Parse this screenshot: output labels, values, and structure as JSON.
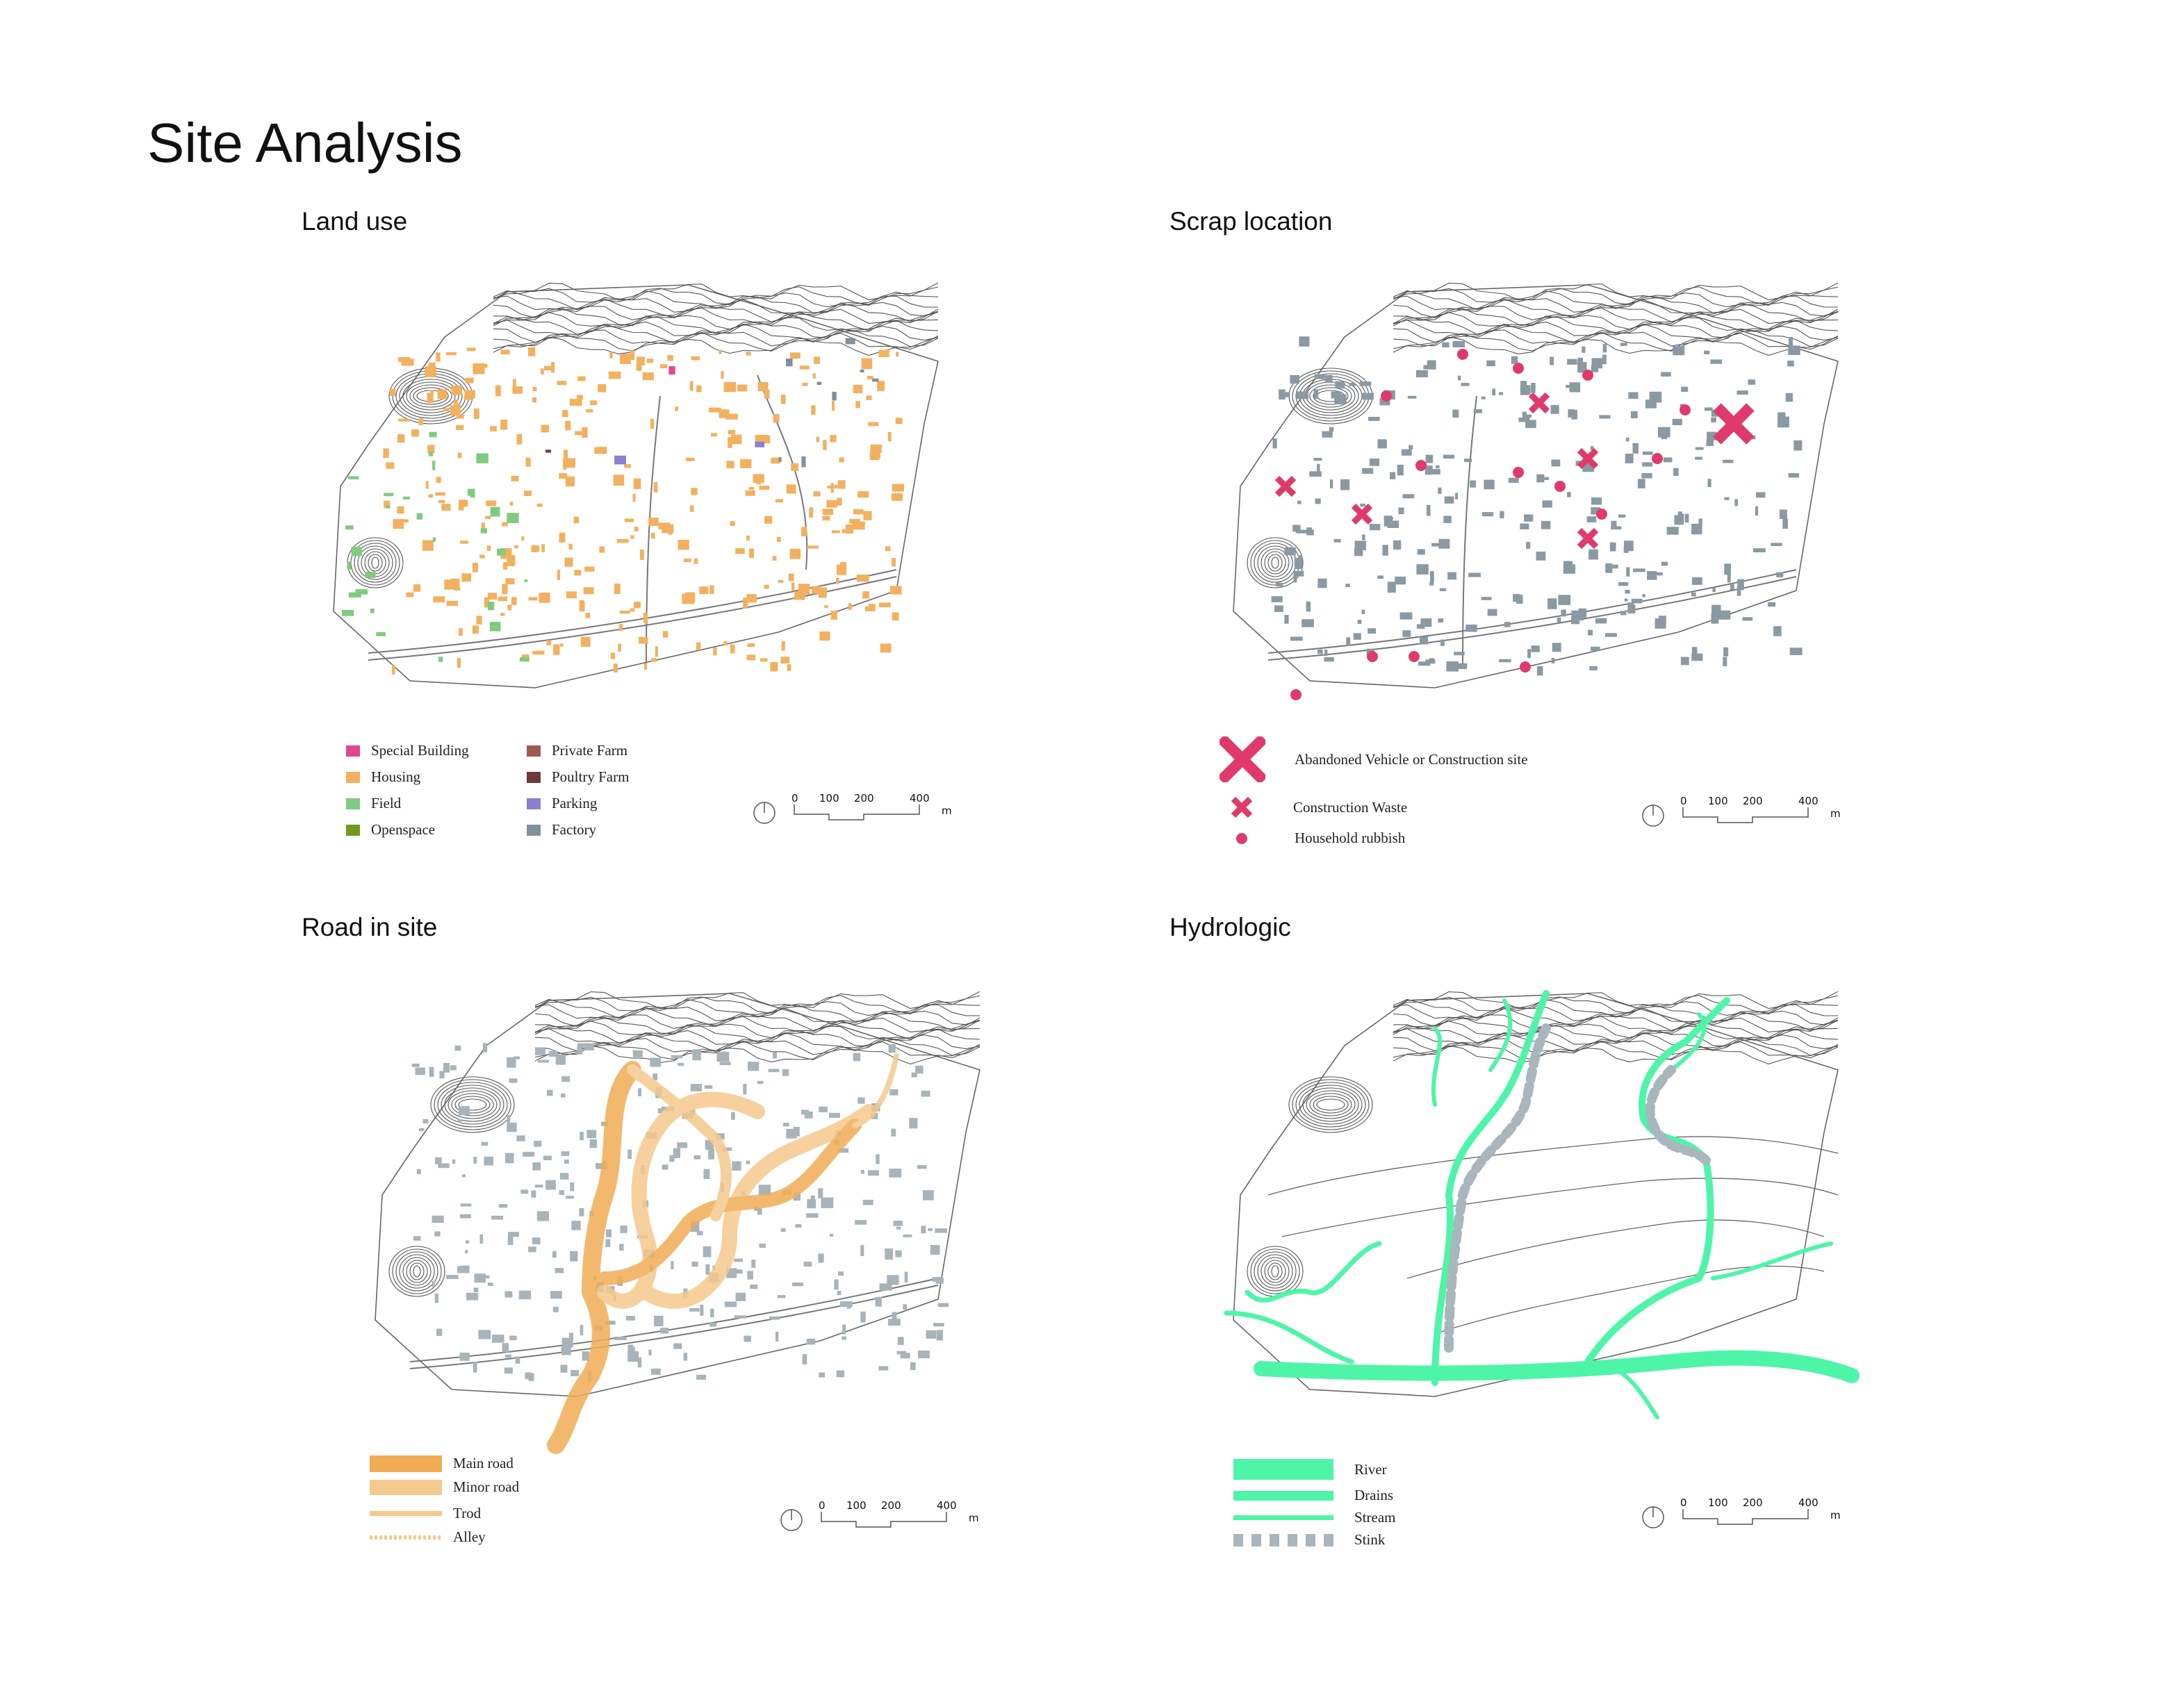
{
  "page_title": "Site Analysis",
  "panels": {
    "landuse": {
      "title": "Land use"
    },
    "scrap": {
      "title": "Scrap location"
    },
    "road": {
      "title": "Road in site"
    },
    "hydro": {
      "title": "Hydrologic"
    }
  },
  "landuse_legend": [
    {
      "label": "Special Building",
      "color": "#e0478e"
    },
    {
      "label": "Housing",
      "color": "#f2b160"
    },
    {
      "label": "Field",
      "color": "#7fcb7f"
    },
    {
      "label": "Openspace",
      "color": "#6f9a1a"
    },
    {
      "label": "Private Farm",
      "color": "#9e5a4e"
    },
    {
      "label": "Poultry Farm",
      "color": "#6b3b3b"
    },
    {
      "label": "Parking",
      "color": "#8a7fd2"
    },
    {
      "label": "Factory",
      "color": "#7f919a"
    }
  ],
  "scrap_legend": [
    {
      "label": "Abandoned Vehicle or Construction site",
      "icon": "large-x-icon",
      "color": "#e03a6c"
    },
    {
      "label": "Construction Waste",
      "icon": "small-x-icon",
      "color": "#e03a6c"
    },
    {
      "label": "Household rubbish",
      "icon": "dot-icon",
      "color": "#e03a6c"
    }
  ],
  "road_legend": [
    {
      "label": "Main road",
      "style": "main-road",
      "color": "#f0b060"
    },
    {
      "label": "Minor road",
      "style": "minor-road",
      "color": "#f5c98e"
    },
    {
      "label": "Trod",
      "style": "trod",
      "color": "#f5c98e"
    },
    {
      "label": "Alley",
      "style": "alley",
      "color": "#f5c98e"
    }
  ],
  "hydro_legend": [
    {
      "label": "River",
      "style": "river",
      "color": "#4ef5a8"
    },
    {
      "label": "Drains",
      "style": "drains",
      "color": "#4ef5a8"
    },
    {
      "label": "Stream",
      "style": "stream",
      "color": "#4ef5a8"
    },
    {
      "label": "Stink",
      "style": "stink",
      "color": "#a9b6bb"
    }
  ],
  "scale_bar": {
    "ticks": [
      "0",
      "100",
      "200",
      "400"
    ],
    "unit": "m"
  }
}
